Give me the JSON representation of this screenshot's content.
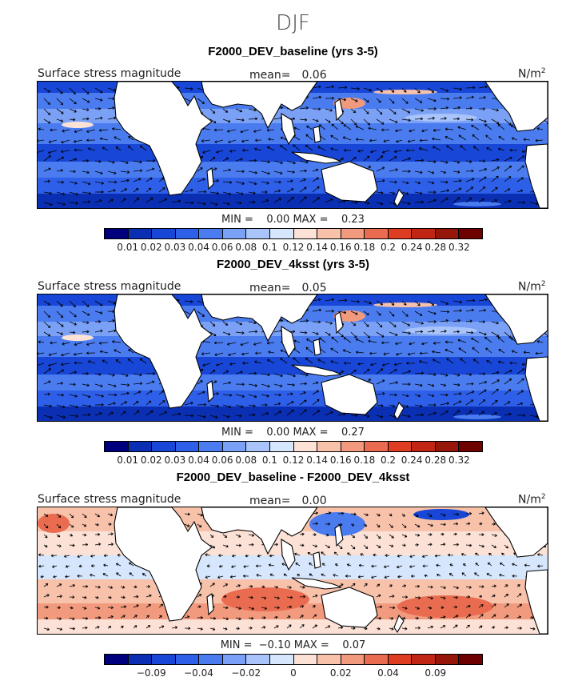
{
  "season": "DJF",
  "colors": {
    "ocean_base": "#2f62e0",
    "land": "#ffffff",
    "coast": "#000000",
    "arrow": "#000000"
  },
  "abs_scale": {
    "swatches": [
      "#00007f",
      "#0a2fb2",
      "#1846d6",
      "#2e5fe8",
      "#4a7cf0",
      "#7aa1f5",
      "#a8c4fa",
      "#d6e6fd",
      "#fbe1d6",
      "#f7c1aa",
      "#f29a7e",
      "#ea6c50",
      "#df3d22",
      "#c02613",
      "#96170a",
      "#6e0000"
    ],
    "ticks": [
      "0.01",
      "0.02",
      "0.03",
      "0.04",
      "0.06",
      "0.08",
      "0.1",
      "0.12",
      "0.14",
      "0.16",
      "0.18",
      "0.2",
      "0.24",
      "0.28",
      "0.32"
    ]
  },
  "diff_scale": {
    "swatches": [
      "#00007f",
      "#0a2fb2",
      "#1846d6",
      "#2e5fe8",
      "#4a7cf0",
      "#7aa1f5",
      "#a8c4fa",
      "#d6e6fd",
      "#fbe1d6",
      "#f7c1aa",
      "#f29a7e",
      "#ea6c50",
      "#df3d22",
      "#c02613",
      "#96170a",
      "#6e0000"
    ],
    "ticks": [
      "−0.09",
      "−0.04",
      "−0.02",
      "0",
      "0.02",
      "0.04",
      "0.09"
    ]
  },
  "panels": [
    {
      "title": "F2000_DEV_baseline (yrs 3-5)",
      "variable": "Surface stress magnitude",
      "mean_label": "mean=",
      "mean_value": "0.06",
      "units": "N/m",
      "units_exp": "2",
      "minmax": "MIN =    0.00 MAX =    0.23",
      "scale": "abs"
    },
    {
      "title": "F2000_DEV_4ksst (yrs 3-5)",
      "variable": "Surface stress magnitude",
      "mean_label": "mean=",
      "mean_value": "0.05",
      "units": "N/m",
      "units_exp": "2",
      "minmax": "MIN =    0.00 MAX =    0.27",
      "scale": "abs"
    },
    {
      "title": "F2000_DEV_baseline - F2000_DEV_4ksst",
      "variable": "Surface stress magnitude",
      "mean_label": "mean=",
      "mean_value": "0.00",
      "units": "N/m",
      "units_exp": "2",
      "minmax": "MIN =  −0.10 MAX =    0.07",
      "scale": "diff"
    }
  ]
}
